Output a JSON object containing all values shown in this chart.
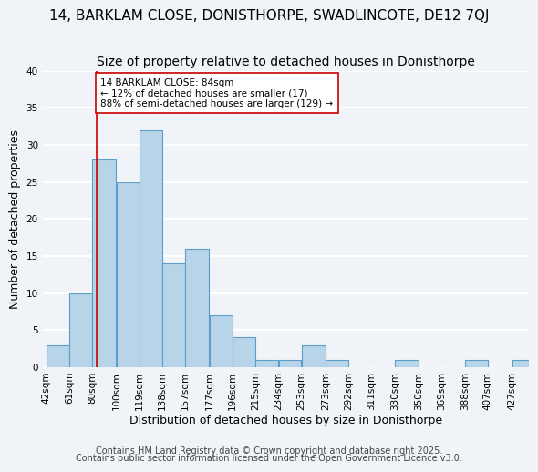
{
  "title": "14, BARKLAM CLOSE, DONISTHORPE, SWADLINCOTE, DE12 7QJ",
  "subtitle": "Size of property relative to detached houses in Donisthorpe",
  "xlabel": "Distribution of detached houses by size in Donisthorpe",
  "ylabel": "Number of detached properties",
  "bar_edges": [
    42,
    61,
    80,
    100,
    119,
    138,
    157,
    177,
    196,
    215,
    234,
    253,
    273,
    292,
    311,
    330,
    350,
    369,
    388,
    407,
    427,
    446
  ],
  "bar_heights": [
    3,
    10,
    28,
    25,
    32,
    14,
    16,
    7,
    4,
    1,
    1,
    3,
    1,
    0,
    0,
    1,
    0,
    0,
    1,
    0,
    1
  ],
  "bar_color": "#b8d4e8",
  "bar_edgecolor": "#5a9ec9",
  "tick_labels": [
    "42sqm",
    "61sqm",
    "80sqm",
    "100sqm",
    "119sqm",
    "138sqm",
    "157sqm",
    "177sqm",
    "196sqm",
    "215sqm",
    "234sqm",
    "253sqm",
    "273sqm",
    "292sqm",
    "311sqm",
    "330sqm",
    "350sqm",
    "369sqm",
    "388sqm",
    "407sqm",
    "427sqm"
  ],
  "vline_x": 84,
  "vline_color": "#cc0000",
  "ylim": [
    0,
    40
  ],
  "yticks": [
    0,
    5,
    10,
    15,
    20,
    25,
    30,
    35,
    40
  ],
  "annotation_title": "14 BARKLAM CLOSE: 84sqm",
  "annotation_line1": "← 12% of detached houses are smaller (17)",
  "annotation_line2": "88% of semi-detached houses are larger (129) →",
  "footer1": "Contains HM Land Registry data © Crown copyright and database right 2025.",
  "footer2": "Contains public sector information licensed under the Open Government Licence v3.0.",
  "background_color": "#f0f4f8",
  "grid_color": "#ffffff",
  "title_fontsize": 11,
  "subtitle_fontsize": 10,
  "axis_fontsize": 9,
  "tick_fontsize": 7.5,
  "footer_fontsize": 7
}
